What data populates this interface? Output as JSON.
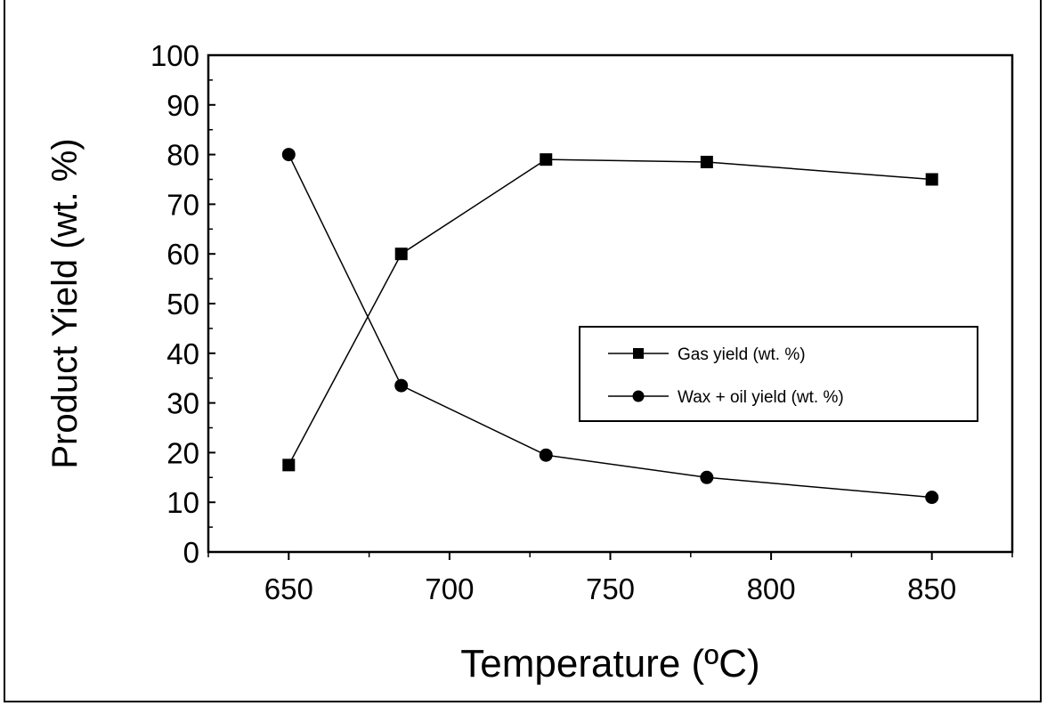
{
  "chart_data": {
    "type": "line",
    "title": "",
    "xlabel": "Temperature (ºC)",
    "ylabel": "Product Yield (wt. %)",
    "xlim": [
      625,
      875
    ],
    "ylim": [
      0,
      100
    ],
    "xticks": [
      650,
      700,
      750,
      800,
      850
    ],
    "yticks": [
      0,
      10,
      20,
      30,
      40,
      50,
      60,
      70,
      80,
      90,
      100
    ],
    "grid": false,
    "legend_position": "center-right",
    "series": [
      {
        "name": "Gas yield (wt. %)",
        "marker": "square",
        "x": [
          650,
          685,
          730,
          780,
          850
        ],
        "y": [
          17.5,
          60,
          79,
          78.5,
          75
        ]
      },
      {
        "name": "Wax + oil yield (wt. %)",
        "marker": "circle",
        "x": [
          650,
          685,
          730,
          780,
          850
        ],
        "y": [
          80,
          33.5,
          19.5,
          15,
          11
        ]
      }
    ],
    "colors": {
      "line": "#000000",
      "marker": "#000000",
      "axis": "#000000"
    }
  }
}
